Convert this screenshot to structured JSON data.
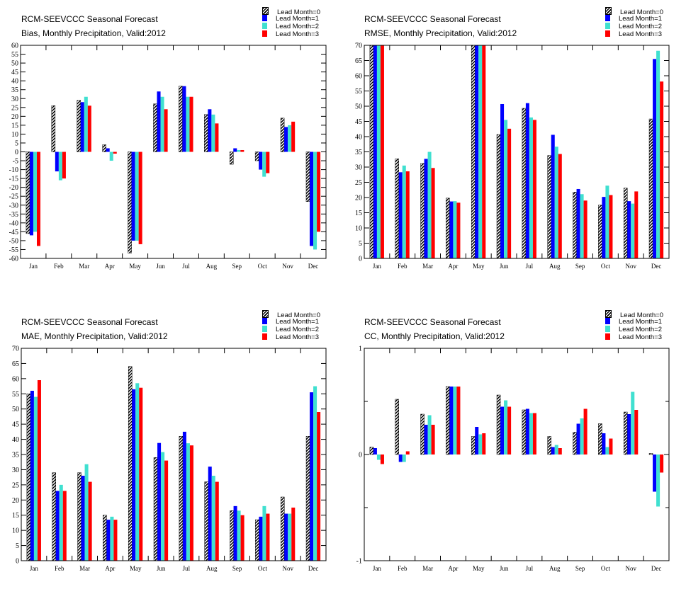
{
  "legend": {
    "entries": [
      "Lead Month=0",
      "Lead Month=1",
      "Lead Month=2",
      "Lead Month=3"
    ],
    "colors": [
      "hatch",
      "#0000ff",
      "#40e0d0",
      "#ff0000"
    ]
  },
  "panels": [
    {
      "title": "RCM-SEEVCCC Seasonal Forecast",
      "subtitle": "Bias, Monthly Precipitation, Valid:2012"
    },
    {
      "title": "RCM-SEEVCCC Seasonal Forecast",
      "subtitle": "RMSE, Monthly Precipitation, Valid:2012"
    },
    {
      "title": "RCM-SEEVCCC Seasonal Forecast",
      "subtitle": "MAE, Monthly Precipitation, Valid:2012"
    },
    {
      "title": "RCM-SEEVCCC Seasonal Forecast",
      "subtitle": "CC, Monthly Precipitation, Valid:2012"
    }
  ],
  "chart_data": [
    {
      "type": "bar",
      "title": "RCM-SEEVCCC Seasonal Forecast",
      "subtitle": "Bias, Monthly Precipitation, Valid:2012",
      "categories": [
        "Jan",
        "Feb",
        "Mar",
        "Apr",
        "May",
        "Jun",
        "Jul",
        "Aug",
        "Sep",
        "Oct",
        "Nov",
        "Dec"
      ],
      "ylim": [
        -60,
        60
      ],
      "yticks": [
        -60,
        -55,
        -50,
        -45,
        -40,
        -35,
        -30,
        -25,
        -20,
        -15,
        -10,
        -5,
        0,
        5,
        10,
        15,
        20,
        25,
        30,
        35,
        40,
        45,
        50,
        55,
        60
      ],
      "series": [
        {
          "name": "Lead Month=0",
          "values": [
            -46,
            26,
            29,
            4,
            -57,
            27,
            37,
            21,
            -7,
            -5,
            19,
            -28
          ]
        },
        {
          "name": "Lead Month=1",
          "values": [
            -47,
            -11,
            28,
            2,
            -50,
            34,
            37,
            24,
            2,
            -10,
            14,
            -53
          ]
        },
        {
          "name": "Lead Month=2",
          "values": [
            -45,
            -16,
            31,
            -5,
            -50,
            31,
            31,
            21,
            1,
            -14,
            15,
            -55
          ]
        },
        {
          "name": "Lead Month=3",
          "values": [
            -53,
            -15,
            26,
            -1,
            -52,
            24,
            31,
            16,
            1,
            -12,
            17,
            -45
          ]
        }
      ]
    },
    {
      "type": "bar",
      "title": "RCM-SEEVCCC Seasonal Forecast",
      "subtitle": "RMSE, Monthly Precipitation, Valid:2012",
      "categories": [
        "Jan",
        "Feb",
        "Mar",
        "Apr",
        "May",
        "Jun",
        "Jul",
        "Aug",
        "Sep",
        "Oct",
        "Nov",
        "Dec"
      ],
      "ylim": [
        0,
        70
      ],
      "yticks": [
        0,
        5,
        10,
        15,
        20,
        25,
        30,
        35,
        40,
        45,
        50,
        55,
        60,
        65,
        70
      ],
      "series": [
        {
          "name": "Lead Month=0",
          "values": [
            70,
            32.7,
            31.2,
            19.8,
            70,
            40.7,
            49.3,
            33.8,
            21.8,
            17.5,
            23.1,
            45.8
          ]
        },
        {
          "name": "Lead Month=1",
          "values": [
            70,
            28.3,
            32.7,
            18.7,
            70,
            50.7,
            51,
            40.6,
            22.8,
            20.2,
            18.8,
            65.5
          ]
        },
        {
          "name": "Lead Month=2",
          "values": [
            70,
            30.5,
            35,
            18.8,
            70,
            45.5,
            46.3,
            36.7,
            21.1,
            23.9,
            18,
            68.2
          ]
        },
        {
          "name": "Lead Month=3",
          "values": [
            70,
            28.6,
            29.7,
            18.3,
            70,
            42.6,
            45.5,
            34.3,
            19,
            20.8,
            22,
            58.1
          ]
        }
      ]
    },
    {
      "type": "bar",
      "title": "RCM-SEEVCCC Seasonal Forecast",
      "subtitle": "MAE, Monthly Precipitation, Valid:2012",
      "categories": [
        "Jan",
        "Feb",
        "Mar",
        "Apr",
        "May",
        "Jun",
        "Jul",
        "Aug",
        "Sep",
        "Oct",
        "Nov",
        "Dec"
      ],
      "ylim": [
        0,
        70
      ],
      "yticks": [
        0,
        5,
        10,
        15,
        20,
        25,
        30,
        35,
        40,
        45,
        50,
        55,
        60,
        65,
        70
      ],
      "series": [
        {
          "name": "Lead Month=0",
          "values": [
            55,
            29,
            29,
            15,
            64,
            34,
            41,
            26,
            16.5,
            13.5,
            21,
            41
          ]
        },
        {
          "name": "Lead Month=1",
          "values": [
            56,
            23,
            28,
            13.5,
            56.5,
            38.8,
            42.5,
            31,
            18,
            14.5,
            15.5,
            55.5
          ]
        },
        {
          "name": "Lead Month=2",
          "values": [
            54,
            25,
            31.8,
            14.5,
            58.5,
            35.8,
            38.7,
            28,
            16.5,
            18,
            15.5,
            57.5
          ]
        },
        {
          "name": "Lead Month=3",
          "values": [
            59.5,
            23,
            26,
            13.5,
            57,
            33,
            38,
            26,
            15,
            15.5,
            17.5,
            49
          ]
        }
      ]
    },
    {
      "type": "bar",
      "title": "RCM-SEEVCCC Seasonal Forecast",
      "subtitle": "CC, Monthly Precipitation, Valid:2012",
      "categories": [
        "Jan",
        "Feb",
        "Mar",
        "Apr",
        "May",
        "Jun",
        "Jul",
        "Aug",
        "Sep",
        "Oct",
        "Nov",
        "Dec"
      ],
      "ylim": [
        -1,
        1
      ],
      "yticks": [
        -1,
        0,
        1
      ],
      "series": [
        {
          "name": "Lead Month=0",
          "values": [
            0.07,
            0.52,
            0.38,
            0.64,
            0.17,
            0.56,
            0.42,
            0.17,
            0.21,
            0.29,
            0.4,
            0.01
          ]
        },
        {
          "name": "Lead Month=1",
          "values": [
            0.06,
            -0.07,
            0.28,
            0.64,
            0.26,
            0.45,
            0.43,
            0.07,
            0.29,
            0.2,
            0.38,
            -0.35
          ]
        },
        {
          "name": "Lead Month=2",
          "values": [
            -0.05,
            -0.07,
            0.37,
            0.64,
            0.19,
            0.51,
            0.39,
            0.09,
            0.34,
            0.07,
            0.59,
            -0.49
          ]
        },
        {
          "name": "Lead Month=3",
          "values": [
            -0.09,
            0.03,
            0.28,
            0.64,
            0.2,
            0.45,
            0.39,
            0.06,
            0.43,
            0.15,
            0.42,
            -0.17
          ]
        }
      ]
    }
  ]
}
